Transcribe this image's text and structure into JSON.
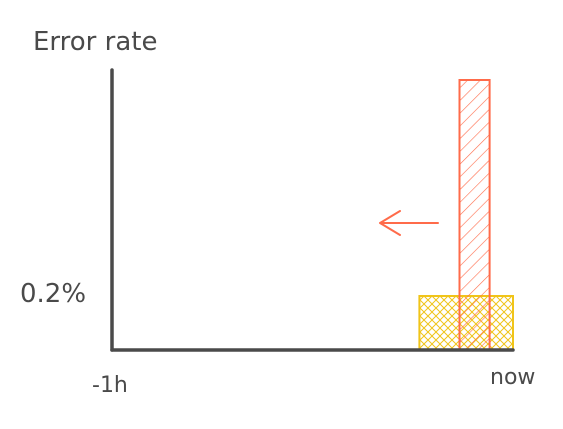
{
  "chart_data": {
    "type": "bar",
    "title": "Error rate",
    "x_tick_labels": [
      "-1h",
      "now"
    ],
    "y_tick_labels": [
      "0.2%"
    ],
    "y_tick_values": [
      0.2
    ],
    "ylim": [
      0,
      0.55
    ],
    "series": [
      {
        "style": "hatched",
        "color": "#f0c419",
        "x_start_min": -14,
        "x_end_min": 0,
        "value": 0.2
      },
      {
        "style": "hatched",
        "color": "#ff6b4a",
        "x_start_min": -8,
        "x_end_min": -3.5,
        "value": 1.0
      }
    ],
    "annotation": {
      "type": "arrow",
      "direction": "left",
      "color": "#ff6b4a"
    },
    "grid": false,
    "legend": "none"
  },
  "colors": {
    "axis": "#4a4a4a",
    "text": "#4a4a4a"
  }
}
